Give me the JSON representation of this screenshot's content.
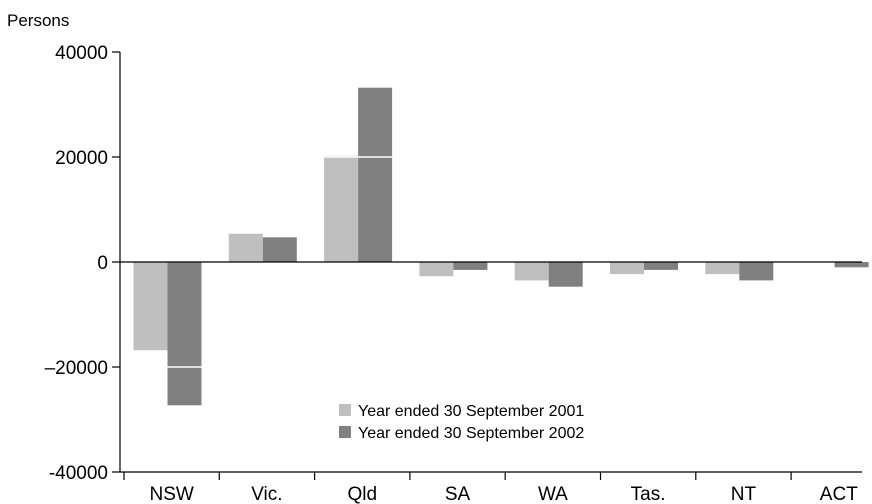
{
  "chart_data": {
    "type": "bar",
    "ylabel": "Persons",
    "categories": [
      "NSW",
      "Vic.",
      "Qld",
      "SA",
      "WA",
      "Tas.",
      "NT",
      "ACT"
    ],
    "series": [
      {
        "name": "Year ended 30 September 2001",
        "values": [
          -16800,
          5400,
          20200,
          -2700,
          -3500,
          -2300,
          -2300,
          0
        ]
      },
      {
        "name": "Year ended 30 September 2002",
        "values": [
          -27300,
          4700,
          33200,
          -1500,
          -4700,
          -1500,
          -3500,
          -1000
        ]
      }
    ],
    "ylim": [
      -40000,
      40000
    ],
    "yticks": [
      -40000,
      -20000,
      0,
      20000,
      40000
    ],
    "ytick_labels": [
      "-40000",
      "–20000",
      "0",
      "20000",
      "40000"
    ],
    "legend": {
      "placement": "bottom-center"
    },
    "colors": {
      "series_1": "#bfbfbf",
      "series_2": "#808080",
      "axis": "#000000"
    },
    "grid": false
  }
}
